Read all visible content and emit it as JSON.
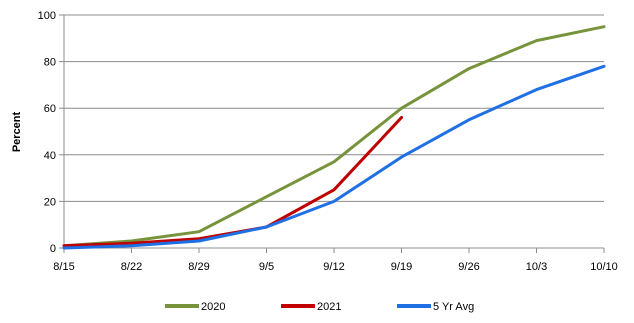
{
  "chart_data": {
    "type": "line",
    "title": "",
    "xlabel": "",
    "ylabel": "Percent",
    "categories": [
      "8/15",
      "8/22",
      "8/29",
      "9/5",
      "9/12",
      "9/19",
      "9/26",
      "10/3",
      "10/10"
    ],
    "ylim": [
      0,
      100
    ],
    "yticks": [
      0,
      20,
      40,
      60,
      80,
      100
    ],
    "grid": "horizontal",
    "legend_position": "bottom",
    "series": [
      {
        "name": "2020",
        "color": "#77933C",
        "values": [
          1,
          3,
          7,
          22,
          37,
          60,
          77,
          89,
          95
        ]
      },
      {
        "name": "2021",
        "color": "#C00000",
        "values": [
          1,
          2,
          4,
          9,
          25,
          56,
          null,
          null,
          null
        ]
      },
      {
        "name": "5 Yr Avg",
        "color": "#1F6FE5",
        "values": [
          0,
          1,
          3,
          9,
          20,
          39,
          55,
          68,
          78
        ]
      }
    ]
  }
}
